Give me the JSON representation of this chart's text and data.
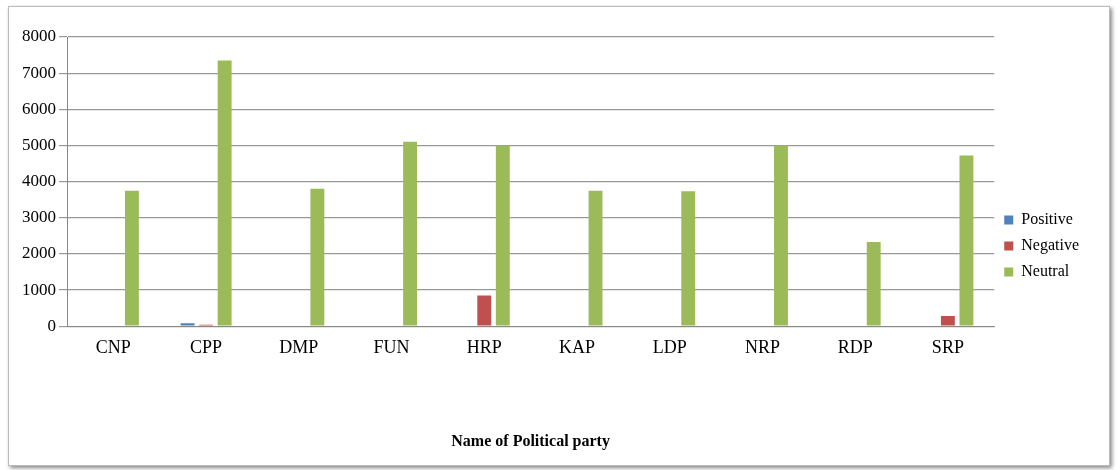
{
  "chart_data": {
    "type": "bar",
    "xlabel": "Name of Political party",
    "categories": [
      "CNP",
      "CPP",
      "DMP",
      "FUN",
      "HRP",
      "KAP",
      "LDP",
      "NRP",
      "RDP",
      "SRP"
    ],
    "series": [
      {
        "name": "Positive",
        "color": "#4f81bd",
        "values": [
          20,
          80,
          20,
          20,
          20,
          20,
          20,
          20,
          20,
          20
        ]
      },
      {
        "name": "Negative",
        "color": "#c0504d",
        "values": [
          20,
          40,
          20,
          20,
          850,
          20,
          20,
          20,
          20,
          280
        ]
      },
      {
        "name": "Neutral",
        "color": "#9bbb59",
        "values": [
          3750,
          7350,
          3800,
          5100,
          5000,
          3750,
          3730,
          5000,
          2330,
          4720
        ]
      }
    ],
    "ylim": [
      0,
      8000
    ],
    "yticks": [
      0,
      1000,
      2000,
      3000,
      4000,
      5000,
      6000,
      7000,
      8000
    ],
    "grid": "y",
    "legend": "right"
  }
}
